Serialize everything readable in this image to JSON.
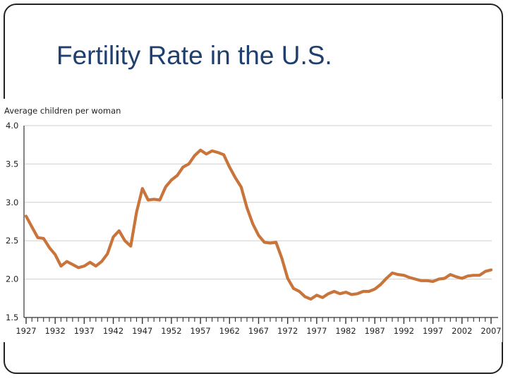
{
  "slide": {
    "title": "Fertility Rate in the U.S."
  },
  "chart_data": {
    "type": "line",
    "title": "",
    "ylabel": "Average children per woman",
    "xlabel": "",
    "ylim": [
      1.5,
      4.0
    ],
    "xlim": [
      1927,
      2007
    ],
    "yticks": [
      "1.5",
      "2.0",
      "2.5",
      "3.0",
      "3.5",
      "4.0"
    ],
    "xticks": [
      "1927",
      "1932",
      "1937",
      "1942",
      "1947",
      "1952",
      "1957",
      "1962",
      "1967",
      "1972",
      "1977",
      "1982",
      "1987",
      "1992",
      "1997",
      "2002",
      "2007"
    ],
    "grid": "horizontal",
    "color": "#c8743a",
    "x": [
      1927,
      1928,
      1929,
      1930,
      1931,
      1932,
      1933,
      1934,
      1935,
      1936,
      1937,
      1938,
      1939,
      1940,
      1941,
      1942,
      1943,
      1944,
      1945,
      1946,
      1947,
      1948,
      1949,
      1950,
      1951,
      1952,
      1953,
      1954,
      1955,
      1956,
      1957,
      1958,
      1959,
      1960,
      1961,
      1962,
      1963,
      1964,
      1965,
      1966,
      1967,
      1968,
      1969,
      1970,
      1971,
      1972,
      1973,
      1974,
      1975,
      1976,
      1977,
      1978,
      1979,
      1980,
      1981,
      1982,
      1983,
      1984,
      1985,
      1986,
      1987,
      1988,
      1989,
      1990,
      1991,
      1992,
      1993,
      1994,
      1995,
      1996,
      1997,
      1998,
      1999,
      2000,
      2001,
      2002,
      2003,
      2004,
      2005,
      2006,
      2007
    ],
    "values": [
      2.82,
      2.68,
      2.54,
      2.53,
      2.41,
      2.32,
      2.17,
      2.23,
      2.19,
      2.15,
      2.17,
      2.22,
      2.17,
      2.23,
      2.33,
      2.55,
      2.63,
      2.5,
      2.43,
      2.87,
      3.18,
      3.03,
      3.04,
      3.03,
      3.2,
      3.29,
      3.35,
      3.46,
      3.5,
      3.61,
      3.68,
      3.63,
      3.67,
      3.65,
      3.62,
      3.46,
      3.32,
      3.2,
      2.93,
      2.72,
      2.57,
      2.48,
      2.47,
      2.48,
      2.27,
      2.01,
      1.88,
      1.84,
      1.77,
      1.74,
      1.79,
      1.76,
      1.81,
      1.84,
      1.81,
      1.83,
      1.8,
      1.81,
      1.84,
      1.84,
      1.87,
      1.93,
      2.01,
      2.08,
      2.06,
      2.05,
      2.02,
      2.0,
      1.98,
      1.98,
      1.97,
      2.0,
      2.01,
      2.06,
      2.03,
      2.01,
      2.04,
      2.05,
      2.05,
      2.1,
      2.12
    ]
  }
}
